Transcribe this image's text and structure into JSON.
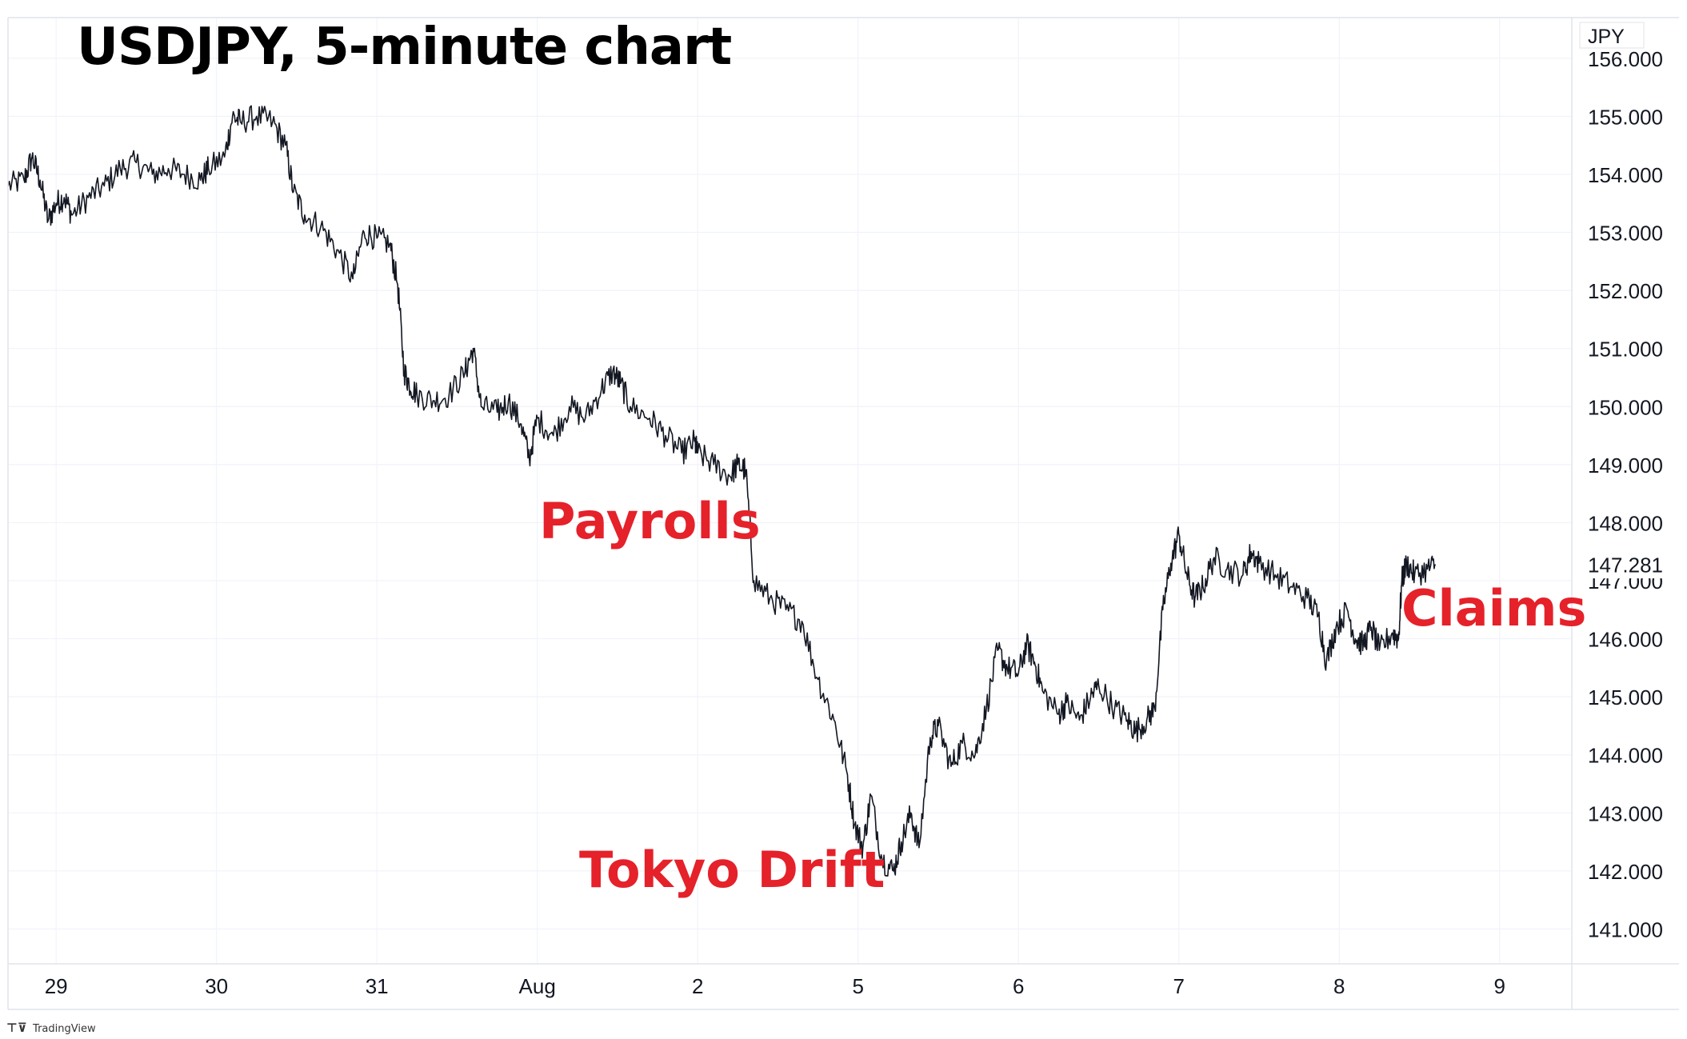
{
  "colors": {
    "price_line": "#131722",
    "annotation": "#e5212a",
    "grid": "#f0f3fa",
    "axis_text": "#131722",
    "border": "#e0e3eb",
    "price_tag_bg": "#ffffff"
  },
  "footer": {
    "logo_mark": "⊤⊽",
    "logo_text": "TradingView"
  },
  "chart_data": {
    "type": "line",
    "title": "USDJPY, 5-minute chart",
    "currency_label": "JPY",
    "xlabel": "",
    "ylabel": "",
    "ylim": [
      140.4,
      156.7
    ],
    "xlim": [
      -0.3,
      9.45
    ],
    "grid": true,
    "last_price": {
      "label": "147.281",
      "value": 147.281
    },
    "y_ticks": [
      {
        "value": 156,
        "label": "156.000"
      },
      {
        "value": 155,
        "label": "155.000"
      },
      {
        "value": 154,
        "label": "154.000"
      },
      {
        "value": 153,
        "label": "153.000"
      },
      {
        "value": 152,
        "label": "152.000"
      },
      {
        "value": 151,
        "label": "151.000"
      },
      {
        "value": 150,
        "label": "150.000"
      },
      {
        "value": 149,
        "label": "149.000"
      },
      {
        "value": 148,
        "label": "148.000"
      },
      {
        "value": 147,
        "label": "147.000"
      },
      {
        "value": 146,
        "label": "146.000"
      },
      {
        "value": 145,
        "label": "145.000"
      },
      {
        "value": 144,
        "label": "144.000"
      },
      {
        "value": 143,
        "label": "143.000"
      },
      {
        "value": 142,
        "label": "142.000"
      },
      {
        "value": 141,
        "label": "141.000"
      }
    ],
    "x_ticks": [
      {
        "x": 0,
        "label": "29"
      },
      {
        "x": 1,
        "label": "30"
      },
      {
        "x": 2,
        "label": "31"
      },
      {
        "x": 3,
        "label": "Aug"
      },
      {
        "x": 4,
        "label": "2"
      },
      {
        "x": 5,
        "label": "5"
      },
      {
        "x": 6,
        "label": "6"
      },
      {
        "x": 7,
        "label": "7"
      },
      {
        "x": 8,
        "label": "8"
      },
      {
        "x": 9,
        "label": "9"
      }
    ],
    "annotations": [
      {
        "label": "Payrolls",
        "x": 3.01,
        "y": 148.0
      },
      {
        "label": "Tokyo Drift",
        "x": 3.26,
        "y": 142.0
      },
      {
        "label": "Claims",
        "x": 8.39,
        "y": 146.5
      }
    ],
    "series": [
      {
        "points": [
          [
            -0.3,
            153.8
          ],
          [
            -0.2,
            153.9
          ],
          [
            -0.15,
            154.3
          ],
          [
            -0.1,
            153.9
          ],
          [
            -0.05,
            153.2
          ],
          [
            0.0,
            153.5
          ],
          [
            0.05,
            153.6
          ],
          [
            0.1,
            153.3
          ],
          [
            0.2,
            153.6
          ],
          [
            0.3,
            153.8
          ],
          [
            0.4,
            154.1
          ],
          [
            0.5,
            154.2
          ],
          [
            0.6,
            154.0
          ],
          [
            0.7,
            154.1
          ],
          [
            0.8,
            154.0
          ],
          [
            0.9,
            153.9
          ],
          [
            0.95,
            154.1
          ],
          [
            1.05,
            154.3
          ],
          [
            1.1,
            155.0
          ],
          [
            1.15,
            154.9
          ],
          [
            1.25,
            155.0
          ],
          [
            1.35,
            154.9
          ],
          [
            1.43,
            154.5
          ],
          [
            1.48,
            153.7
          ],
          [
            1.55,
            153.3
          ],
          [
            1.65,
            153.1
          ],
          [
            1.75,
            152.7
          ],
          [
            1.85,
            152.2
          ],
          [
            1.92,
            153.0
          ],
          [
            2.0,
            152.9
          ],
          [
            2.08,
            152.8
          ],
          [
            2.13,
            152.1
          ],
          [
            2.17,
            150.6
          ],
          [
            2.2,
            150.4
          ],
          [
            2.25,
            150.2
          ],
          [
            2.35,
            150.1
          ],
          [
            2.45,
            150.2
          ],
          [
            2.55,
            150.6
          ],
          [
            2.6,
            151.0
          ],
          [
            2.65,
            150.0
          ],
          [
            2.75,
            149.9
          ],
          [
            2.82,
            150.1
          ],
          [
            2.9,
            149.7
          ],
          [
            2.95,
            149.1
          ],
          [
            3.0,
            149.8
          ],
          [
            3.1,
            149.5
          ],
          [
            3.2,
            150.0
          ],
          [
            3.3,
            149.8
          ],
          [
            3.4,
            150.3
          ],
          [
            3.47,
            150.6
          ],
          [
            3.52,
            150.4
          ],
          [
            3.58,
            150.0
          ],
          [
            3.7,
            149.8
          ],
          [
            3.8,
            149.5
          ],
          [
            3.9,
            149.2
          ],
          [
            3.98,
            149.4
          ],
          [
            4.0,
            149.2
          ],
          [
            4.1,
            149.0
          ],
          [
            4.2,
            148.8
          ],
          [
            4.25,
            149.0
          ],
          [
            4.3,
            148.9
          ],
          [
            4.35,
            147.0
          ],
          [
            4.45,
            146.7
          ],
          [
            4.55,
            146.5
          ],
          [
            4.65,
            146.3
          ],
          [
            4.75,
            145.3
          ],
          [
            4.85,
            144.6
          ],
          [
            4.93,
            143.7
          ],
          [
            4.98,
            142.8
          ],
          [
            5.03,
            142.4
          ],
          [
            5.08,
            143.3
          ],
          [
            5.15,
            142.2
          ],
          [
            5.22,
            142.0
          ],
          [
            5.27,
            142.5
          ],
          [
            5.33,
            143.0
          ],
          [
            5.38,
            142.4
          ],
          [
            5.45,
            144.3
          ],
          [
            5.5,
            144.5
          ],
          [
            5.58,
            143.8
          ],
          [
            5.65,
            144.2
          ],
          [
            5.73,
            144.0
          ],
          [
            5.8,
            144.8
          ],
          [
            5.87,
            145.8
          ],
          [
            5.93,
            145.5
          ],
          [
            6.0,
            145.4
          ],
          [
            6.05,
            145.9
          ],
          [
            6.1,
            145.6
          ],
          [
            6.15,
            145.1
          ],
          [
            6.25,
            144.7
          ],
          [
            6.3,
            144.9
          ],
          [
            6.38,
            144.6
          ],
          [
            6.45,
            145.0
          ],
          [
            6.5,
            145.2
          ],
          [
            6.6,
            144.8
          ],
          [
            6.68,
            144.6
          ],
          [
            6.73,
            144.4
          ],
          [
            6.8,
            144.6
          ],
          [
            6.85,
            144.8
          ],
          [
            6.9,
            146.5
          ],
          [
            6.95,
            147.3
          ],
          [
            7.0,
            147.8
          ],
          [
            7.05,
            147.1
          ],
          [
            7.1,
            146.7
          ],
          [
            7.15,
            146.9
          ],
          [
            7.22,
            147.4
          ],
          [
            7.3,
            147.2
          ],
          [
            7.4,
            147.1
          ],
          [
            7.45,
            147.5
          ],
          [
            7.5,
            147.3
          ],
          [
            7.6,
            147.1
          ],
          [
            7.7,
            146.9
          ],
          [
            7.8,
            146.7
          ],
          [
            7.87,
            146.4
          ],
          [
            7.92,
            145.6
          ],
          [
            7.98,
            146.2
          ],
          [
            8.05,
            146.5
          ],
          [
            8.1,
            146.0
          ],
          [
            8.15,
            145.9
          ],
          [
            8.2,
            146.2
          ],
          [
            8.25,
            145.8
          ],
          [
            8.33,
            146.1
          ],
          [
            8.37,
            146.0
          ],
          [
            8.39,
            147.0
          ],
          [
            8.42,
            147.3
          ],
          [
            8.47,
            147.1
          ],
          [
            8.55,
            147.2
          ],
          [
            8.6,
            147.28
          ]
        ]
      }
    ]
  }
}
